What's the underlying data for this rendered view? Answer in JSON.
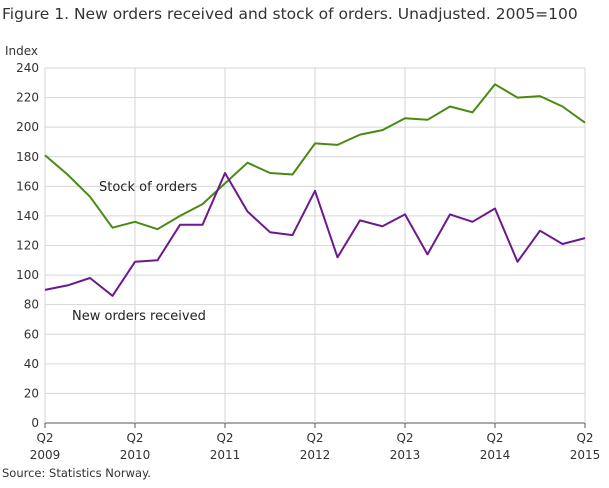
{
  "title": "Figure 1. New orders received and stock of orders. Unadjusted. 2005=100",
  "source": "Source: Statistics Norway.",
  "chart_data": {
    "type": "line",
    "ylabel": "Index",
    "ylim": [
      0,
      240
    ],
    "yticks": [
      0,
      20,
      40,
      60,
      80,
      100,
      120,
      140,
      160,
      180,
      200,
      220,
      240
    ],
    "grid": true,
    "x": [
      "2009Q2",
      "2009Q3",
      "2009Q4",
      "2010Q1",
      "2010Q2",
      "2010Q3",
      "2010Q4",
      "2011Q1",
      "2011Q2",
      "2011Q3",
      "2011Q4",
      "2012Q1",
      "2012Q2",
      "2012Q3",
      "2012Q4",
      "2013Q1",
      "2013Q2",
      "2013Q3",
      "2013Q4",
      "2014Q1",
      "2014Q2",
      "2014Q3",
      "2014Q4",
      "2015Q1",
      "2015Q2"
    ],
    "xtick_labels": [
      {
        "q": "Q2",
        "year": "2009"
      },
      {
        "q": "Q2",
        "year": "2010"
      },
      {
        "q": "Q2",
        "year": "2011"
      },
      {
        "q": "Q2",
        "year": "2012"
      },
      {
        "q": "Q2",
        "year": "2013"
      },
      {
        "q": "Q2",
        "year": "2014"
      },
      {
        "q": "Q2",
        "year": "2015"
      }
    ],
    "series": [
      {
        "name": "Stock of orders",
        "color": "#4a8a12",
        "values": [
          181,
          168,
          153,
          132,
          136,
          131,
          140,
          148,
          162,
          176,
          169,
          168,
          189,
          188,
          195,
          198,
          206,
          205,
          214,
          210,
          229,
          220,
          221,
          214,
          203
        ]
      },
      {
        "name": "New orders received",
        "color": "#6b1a8c",
        "values": [
          90,
          93,
          98,
          86,
          109,
          110,
          134,
          134,
          169,
          143,
          129,
          127,
          157,
          112,
          137,
          133,
          141,
          114,
          141,
          136,
          145,
          109,
          130,
          121,
          125
        ]
      }
    ]
  }
}
